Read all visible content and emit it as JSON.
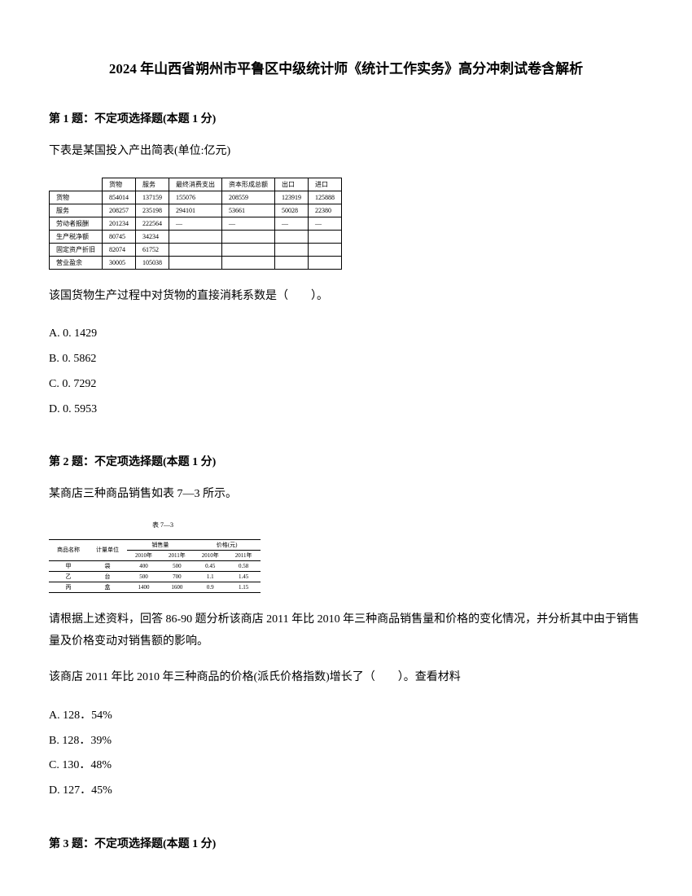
{
  "title": "2024 年山西省朔州市平鲁区中级统计师《统计工作实务》高分冲刺试卷含解析",
  "q1": {
    "header": "第 1 题：不定项选择题(本题 1 分)",
    "intro": "下表是某国投入产出简表(单位:亿元)",
    "table": {
      "headers": [
        "",
        "货物",
        "服务",
        "最终消费支出",
        "资本形成总额",
        "出口",
        "进口"
      ],
      "rows": [
        [
          "货物",
          "854014",
          "137159",
          "155076",
          "208559",
          "123919",
          "125888"
        ],
        [
          "服务",
          "208257",
          "235198",
          "294101",
          "53661",
          "50028",
          "22380"
        ],
        [
          "劳动者报酬",
          "201234",
          "222564",
          "—",
          "—",
          "—",
          "—"
        ],
        [
          "生产税净额",
          "80745",
          "34234",
          "",
          "",
          "",
          ""
        ],
        [
          "固定资产折旧",
          "82074",
          "61752",
          "",
          "",
          "",
          ""
        ],
        [
          "营业盈余",
          "30005",
          "105038",
          "",
          "",
          "",
          ""
        ]
      ]
    },
    "question": "该国货物生产过程中对货物的直接消耗系数是（　　）。",
    "options": {
      "a": "A. 0. 1429",
      "b": "B. 0. 5862",
      "c": "C. 0. 7292",
      "d": "D. 0. 5953"
    }
  },
  "q2": {
    "header": "第 2 题：不定项选择题(本题 1 分)",
    "intro": "某商店三种商品销售如表 7—3 所示。",
    "caption": "表 7—3",
    "table": {
      "headers1": [
        "商品名称",
        "计量单位",
        "销售量",
        "",
        "价格(元)",
        ""
      ],
      "headers2": [
        "",
        "",
        "2010年",
        "2011年",
        "2010年",
        "2011年"
      ],
      "rows": [
        [
          "甲",
          "袋",
          "400",
          "500",
          "0.45",
          "0.58"
        ],
        [
          "乙",
          "台",
          "500",
          "700",
          "1.1",
          "1.45"
        ],
        [
          "丙",
          "盒",
          "1400",
          "1600",
          "0.9",
          "1.15"
        ]
      ]
    },
    "question1": "请根据上述资料，回答 86-90 题分析该商店 2011 年比 2010 年三种商品销售量和价格的变化情况，并分析其中由于销售量及价格变动对销售额的影响。",
    "question2": "该商店 2011 年比 2010 年三种商品的价格(派氏价格指数)增长了（　　）。查看材料",
    "options": {
      "a": "A. 128．54%",
      "b": "B. 128．39%",
      "c": "C. 130．48%",
      "d": "D. 127．45%"
    }
  },
  "q3": {
    "header": "第 3 题：不定项选择题(本题 1 分)"
  }
}
